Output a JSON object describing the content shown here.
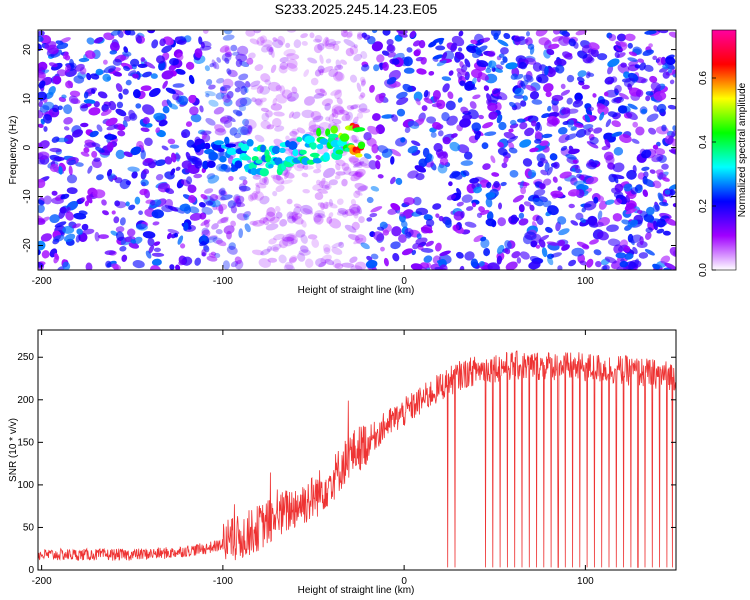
{
  "title": "S233.2025.245.14.23.E05",
  "chart_data": [
    {
      "type": "heatmap",
      "xlabel": "Height of straight line (km)",
      "ylabel": "Frequency (Hz)",
      "xlim": [
        -202,
        150
      ],
      "ylim": [
        -25,
        24
      ],
      "x_ticks": [
        -200,
        -100,
        0,
        100
      ],
      "x_tick_labels": [
        "-200",
        "-100",
        "0",
        "100"
      ],
      "y_ticks": [
        -20,
        -10,
        0,
        10,
        20
      ],
      "y_tick_labels": [
        "-20",
        "-10",
        "0",
        "10",
        "20"
      ],
      "colorbar": {
        "label": "Normalized spectral amplitude",
        "range": [
          0.0,
          0.75
        ],
        "ticks": [
          0.0,
          0.2,
          0.4,
          0.6
        ],
        "tick_labels": [
          "0.0",
          "0.2",
          "0.4",
          "0.6"
        ],
        "colors": [
          "#ffffff",
          "#a000ff",
          "#0000ff",
          "#00ffff",
          "#00ff00",
          "#ffff00",
          "#ff0000",
          "#ff00a0"
        ]
      },
      "empty_gap_x": [
        -85,
        -22
      ],
      "signal_trace": {
        "x": [
          -115,
          -100,
          -90,
          -80,
          -70,
          -60,
          -50,
          -40,
          -30,
          -23
        ],
        "freq": [
          -1,
          -1,
          -2,
          -2,
          -3,
          -1,
          0,
          1,
          2,
          1
        ],
        "amplitude": [
          0.15,
          0.2,
          0.25,
          0.3,
          0.28,
          0.3,
          0.35,
          0.4,
          0.55,
          0.7
        ]
      }
    },
    {
      "type": "line",
      "xlabel": "Height of straight line (km)",
      "ylabel": "SNR (10 * v/v)",
      "xlim": [
        -202,
        150
      ],
      "ylim": [
        0,
        282
      ],
      "x_ticks": [
        -200,
        -100,
        0,
        100
      ],
      "x_tick_labels": [
        "-200",
        "-100",
        "0",
        "100"
      ],
      "y_ticks": [
        0,
        50,
        100,
        150,
        200,
        250
      ],
      "y_tick_labels": [
        "0",
        "50",
        "100",
        "150",
        "200",
        "250"
      ],
      "series": [
        {
          "color": "#ee3333",
          "x": [
            -202,
            -190,
            -170,
            -150,
            -130,
            -110,
            -100,
            -90,
            -80,
            -70,
            -60,
            -50,
            -45,
            -40,
            -35,
            -30,
            -20,
            -10,
            0,
            10,
            20,
            30,
            40,
            50,
            60,
            80,
            100,
            120,
            140,
            150
          ],
          "y": [
            18,
            18,
            18,
            18,
            20,
            25,
            30,
            38,
            50,
            62,
            75,
            85,
            95,
            105,
            120,
            135,
            150,
            170,
            185,
            200,
            215,
            228,
            235,
            238,
            240,
            240,
            238,
            235,
            230,
            228
          ],
          "dips_x": [
            24,
            28,
            45,
            49,
            53,
            57,
            61,
            65,
            69,
            73,
            77,
            81,
            85,
            89,
            93,
            97,
            101,
            105,
            109,
            113,
            117,
            121,
            125,
            129,
            133,
            137,
            141,
            145,
            148
          ]
        }
      ]
    }
  ]
}
